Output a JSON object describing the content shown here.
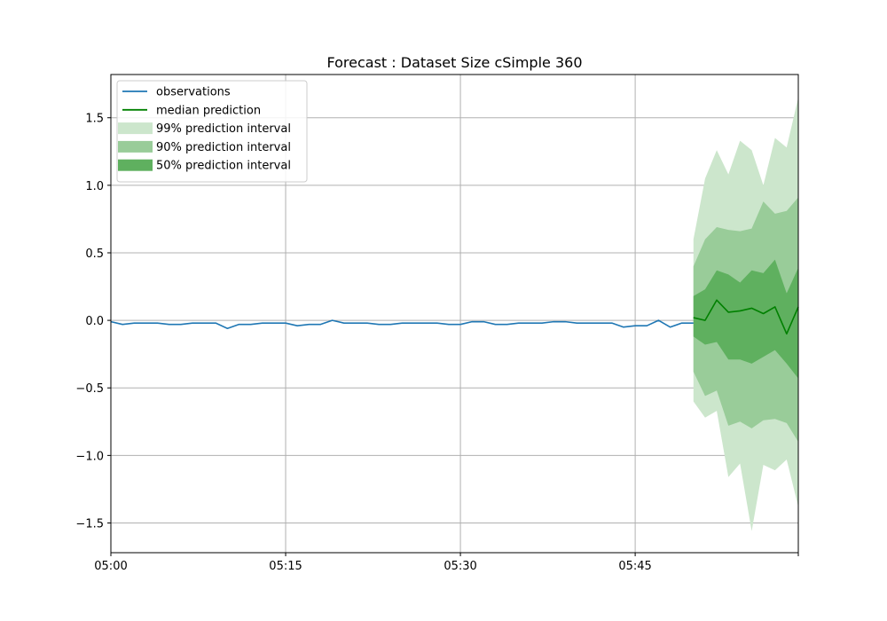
{
  "chart_data": {
    "type": "line",
    "title": "Forecast : Dataset Size cSimple 360",
    "xlabel": "",
    "ylabel": "",
    "x_tick_labels": [
      "05:00",
      "05:15",
      "05:30",
      "05:45"
    ],
    "x_ticks_minutes": [
      0,
      15,
      30,
      45
    ],
    "x_start": "05:00",
    "x_end": "05:59",
    "ylim": [
      -1.72,
      1.82
    ],
    "y_ticks": [
      -1.5,
      -1.0,
      -0.5,
      0.0,
      0.5,
      1.0,
      1.5
    ],
    "y_tick_labels": [
      "−1.5",
      "−1.0",
      "−0.5",
      "0.0",
      "0.5",
      "1.0",
      "1.5"
    ],
    "grid": true,
    "legend_position": "top-left",
    "legend": [
      {
        "label": "observations",
        "kind": "line",
        "color": "#1f77b4"
      },
      {
        "label": "median prediction",
        "kind": "line",
        "color": "#008000"
      },
      {
        "label": "99% prediction interval",
        "kind": "patch",
        "color": "#cce6cc"
      },
      {
        "label": "90% prediction interval",
        "kind": "patch",
        "color": "#99cc99"
      },
      {
        "label": "50% prediction interval",
        "kind": "patch",
        "color": "#5fb05f"
      }
    ],
    "observations": {
      "name": "observations",
      "color": "#1f77b4",
      "x_minutes": [
        0,
        1,
        2,
        3,
        4,
        5,
        6,
        7,
        8,
        9,
        10,
        11,
        12,
        13,
        14,
        15,
        16,
        17,
        18,
        19,
        20,
        21,
        22,
        23,
        24,
        25,
        26,
        27,
        28,
        29,
        30,
        31,
        32,
        33,
        34,
        35,
        36,
        37,
        38,
        39,
        40,
        41,
        42,
        43,
        44,
        45,
        46,
        47,
        48,
        49,
        50
      ],
      "values": [
        -0.01,
        -0.03,
        -0.02,
        -0.02,
        -0.02,
        -0.03,
        -0.03,
        -0.02,
        -0.02,
        -0.02,
        -0.06,
        -0.03,
        -0.03,
        -0.02,
        -0.02,
        -0.02,
        -0.04,
        -0.03,
        -0.03,
        0.0,
        -0.02,
        -0.02,
        -0.02,
        -0.03,
        -0.03,
        -0.02,
        -0.02,
        -0.02,
        -0.02,
        -0.03,
        -0.03,
        -0.01,
        -0.01,
        -0.03,
        -0.03,
        -0.02,
        -0.02,
        -0.02,
        -0.01,
        -0.01,
        -0.02,
        -0.02,
        -0.02,
        -0.02,
        -0.05,
        -0.04,
        -0.04,
        0.0,
        -0.05,
        -0.02,
        -0.02
      ]
    },
    "forecast": {
      "x_minutes": [
        50,
        51,
        52,
        53,
        54,
        55,
        56,
        57,
        58,
        59
      ],
      "median": {
        "name": "median prediction",
        "color": "#008000",
        "values": [
          0.02,
          0.0,
          0.15,
          0.06,
          0.07,
          0.09,
          0.05,
          0.1,
          -0.1,
          0.1
        ]
      },
      "interval_50": {
        "label": "50% prediction interval",
        "color": "#5fb05f",
        "upper": [
          0.18,
          0.23,
          0.37,
          0.34,
          0.28,
          0.37,
          0.35,
          0.45,
          0.2,
          0.39
        ],
        "lower": [
          -0.12,
          -0.18,
          -0.16,
          -0.29,
          -0.29,
          -0.32,
          -0.27,
          -0.22,
          -0.32,
          -0.43
        ]
      },
      "interval_90": {
        "label": "90% prediction interval",
        "color": "#99cc99",
        "upper": [
          0.4,
          0.6,
          0.69,
          0.67,
          0.66,
          0.68,
          0.88,
          0.79,
          0.81,
          0.91
        ],
        "lower": [
          -0.38,
          -0.56,
          -0.52,
          -0.78,
          -0.75,
          -0.8,
          -0.74,
          -0.73,
          -0.76,
          -0.9
        ]
      },
      "interval_99": {
        "label": "99% prediction interval",
        "color": "#cce6cc",
        "upper": [
          0.6,
          1.05,
          1.26,
          1.08,
          1.33,
          1.26,
          1.0,
          1.35,
          1.28,
          1.65
        ],
        "lower": [
          -0.6,
          -0.72,
          -0.67,
          -1.16,
          -1.06,
          -1.56,
          -1.07,
          -1.11,
          -1.03,
          -1.38
        ]
      }
    }
  }
}
